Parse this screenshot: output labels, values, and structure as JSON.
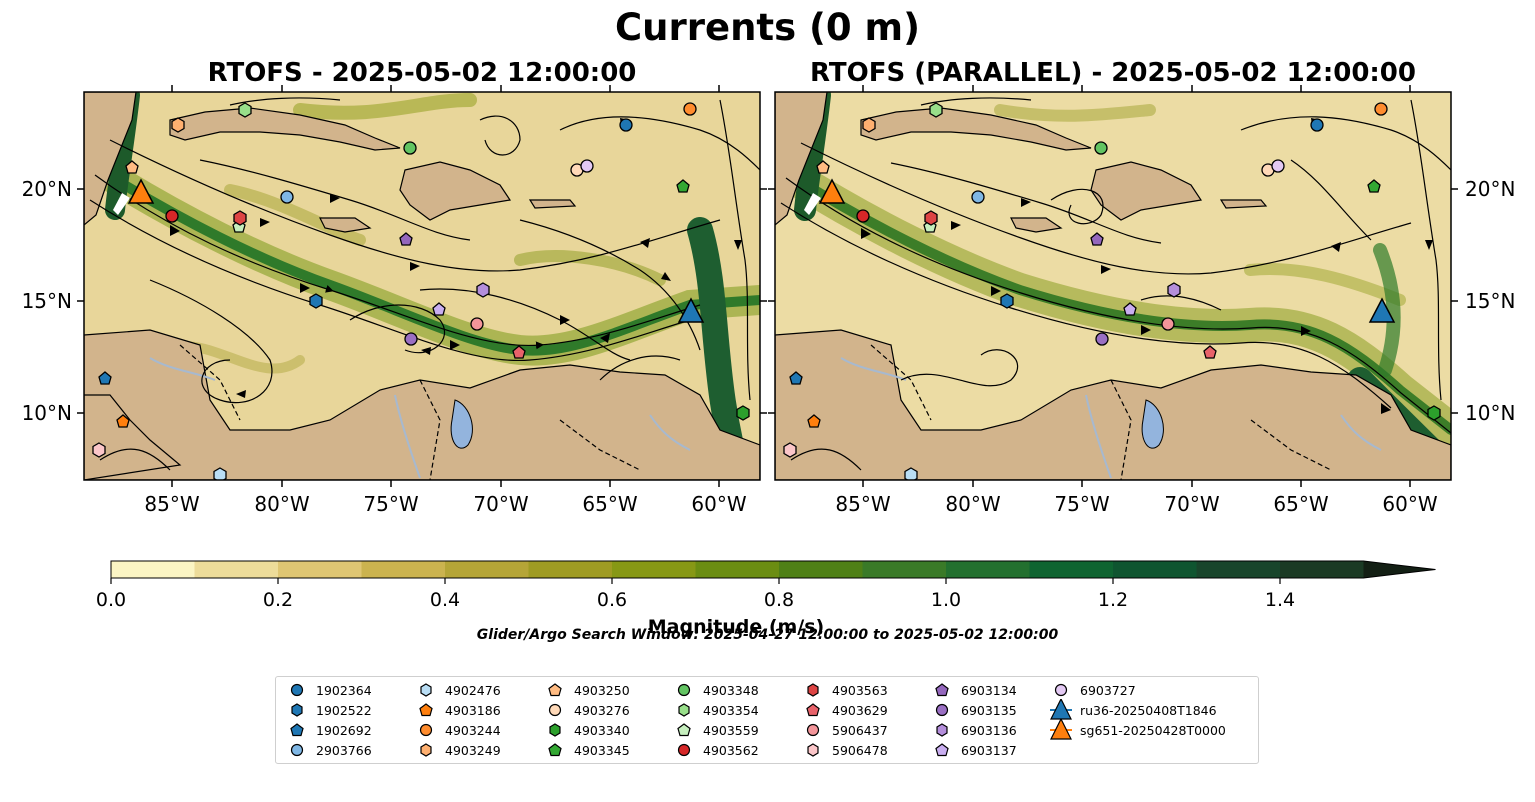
{
  "figure": {
    "title": "Currents (0 m)",
    "panel_titles": [
      "RTOFS - 2025-05-02 12:00:00",
      "RTOFS (PARALLEL) - 2025-05-02 12:00:00"
    ],
    "lat_ticks": [
      "20°N",
      "15°N",
      "10°N"
    ],
    "lon_ticks": [
      "85°W",
      "80°W",
      "75°W",
      "70°W",
      "65°W",
      "60°W"
    ],
    "colorbar_label": "Magnitude (m/s)",
    "colorbar_ticks": [
      "0.0",
      "0.2",
      "0.4",
      "0.6",
      "0.8",
      "1.0",
      "1.2",
      "1.4"
    ],
    "search_window": "Glider/Argo Search Window: 2025-04-27 12:00:00 to 2025-05-02 12:00:00",
    "colors": {
      "land": "#d2b48c",
      "lake": "#93b4dd",
      "river": "#a7b9cf",
      "colormap": [
        "#fbf5c4",
        "#eddc9a",
        "#dfc673",
        "#cbb34f",
        "#b5a537",
        "#9f9b23",
        "#879815",
        "#6b8d12",
        "#4f8016",
        "#3a7a28",
        "#23702f",
        "#0f6431",
        "#0f5530",
        "#18452b",
        "#1b3a24",
        "#172a1a",
        "#131f14"
      ]
    }
  },
  "legend": {
    "items": [
      {
        "label": "1902364",
        "color": "#1f77b4",
        "shape": "circle"
      },
      {
        "label": "1902522",
        "color": "#1f77b4",
        "shape": "hexagon"
      },
      {
        "label": "1902692",
        "color": "#1f77b4",
        "shape": "pentagon"
      },
      {
        "label": "2903766",
        "color": "#7fb7e5",
        "shape": "circle"
      },
      {
        "label": "4902476",
        "color": "#b9def5",
        "shape": "hexagon"
      },
      {
        "label": "4903186",
        "color": "#ff7f0e",
        "shape": "pentagon"
      },
      {
        "label": "4903244",
        "color": "#ff8c2e",
        "shape": "circle"
      },
      {
        "label": "4903249",
        "color": "#ffb070",
        "shape": "hexagon"
      },
      {
        "label": "4903250",
        "color": "#ffbb82",
        "shape": "pentagon"
      },
      {
        "label": "4903276",
        "color": "#ffd9b8",
        "shape": "circle"
      },
      {
        "label": "4903340",
        "color": "#2ca02c",
        "shape": "hexagon"
      },
      {
        "label": "4903345",
        "color": "#33a833",
        "shape": "pentagon"
      },
      {
        "label": "4903348",
        "color": "#62c462",
        "shape": "circle"
      },
      {
        "label": "4903354",
        "color": "#98df8a",
        "shape": "hexagon"
      },
      {
        "label": "4903559",
        "color": "#c6efbe",
        "shape": "pentagon"
      },
      {
        "label": "4903562",
        "color": "#d62728",
        "shape": "circle"
      },
      {
        "label": "4903563",
        "color": "#dd4444",
        "shape": "hexagon"
      },
      {
        "label": "4903629",
        "color": "#e8626a",
        "shape": "pentagon"
      },
      {
        "label": "5906437",
        "color": "#f3959a",
        "shape": "circle"
      },
      {
        "label": "5906478",
        "color": "#fbc6c9",
        "shape": "hexagon"
      },
      {
        "label": "6903134",
        "color": "#9467bd",
        "shape": "pentagon"
      },
      {
        "label": "6903135",
        "color": "#9a6fc3",
        "shape": "circle"
      },
      {
        "label": "6903136",
        "color": "#b48edb",
        "shape": "hexagon"
      },
      {
        "label": "6903137",
        "color": "#c9aef0",
        "shape": "pentagon"
      },
      {
        "label": "6903727",
        "color": "#e3c9f3",
        "shape": "circle"
      },
      {
        "label": "ru36-20250408T1846",
        "color": "#1f77b4",
        "shape": "triangle"
      },
      {
        "label": "sg651-20250428T0000",
        "color": "#ff7f0e",
        "shape": "triangle"
      }
    ]
  }
}
